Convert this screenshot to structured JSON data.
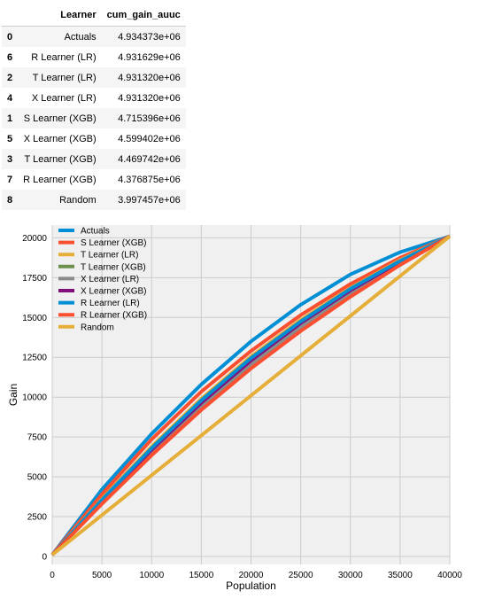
{
  "table": {
    "columns": [
      "",
      "Learner",
      "cum_gain_auuc"
    ],
    "rows": [
      {
        "index": "0",
        "learner": "Actuals",
        "auuc": "4.934373e+06"
      },
      {
        "index": "6",
        "learner": "R Learner (LR)",
        "auuc": "4.931629e+06"
      },
      {
        "index": "2",
        "learner": "T Learner (LR)",
        "auuc": "4.931320e+06"
      },
      {
        "index": "4",
        "learner": "X Learner (LR)",
        "auuc": "4.931320e+06"
      },
      {
        "index": "1",
        "learner": "S Learner (XGB)",
        "auuc": "4.715396e+06"
      },
      {
        "index": "5",
        "learner": "X Learner (XGB)",
        "auuc": "4.599402e+06"
      },
      {
        "index": "3",
        "learner": "T Learner (XGB)",
        "auuc": "4.469742e+06"
      },
      {
        "index": "7",
        "learner": "R Learner (XGB)",
        "auuc": "4.376875e+06"
      },
      {
        "index": "8",
        "learner": "Random",
        "auuc": "3.997457e+06"
      }
    ]
  },
  "chart_data": {
    "type": "line",
    "title": "",
    "xlabel": "Population",
    "ylabel": "Gain",
    "xlim": [
      0,
      40000
    ],
    "ylim": [
      -500,
      20800
    ],
    "xticks": [
      0,
      5000,
      10000,
      15000,
      20000,
      25000,
      30000,
      35000,
      40000
    ],
    "yticks": [
      0,
      2500,
      5000,
      7500,
      10000,
      12500,
      15000,
      17500,
      20000
    ],
    "grid": true,
    "legend_position": "upper-left",
    "background": "#f0f0f0",
    "x": [
      0,
      5000,
      10000,
      15000,
      20000,
      25000,
      30000,
      35000,
      40000
    ],
    "series": [
      {
        "name": "Actuals",
        "color": "#008fd5",
        "values": [
          100,
          4200,
          7700,
          10800,
          13500,
          15800,
          17700,
          19100,
          20100
        ]
      },
      {
        "name": "S Learner (XGB)",
        "color": "#fc4f30",
        "values": [
          100,
          3900,
          7350,
          10350,
          12900,
          15150,
          17100,
          18750,
          20100
        ]
      },
      {
        "name": "T Learner (LR)",
        "color": "#e5ae38",
        "values": [
          100,
          3600,
          6900,
          9900,
          12550,
          14850,
          16850,
          18600,
          20100
        ]
      },
      {
        "name": "T Learner (XGB)",
        "color": "#6d904f",
        "values": [
          100,
          3400,
          6500,
          9350,
          11950,
          14300,
          16450,
          18350,
          20100
        ]
      },
      {
        "name": "X Learner (LR)",
        "color": "#8b8b8b",
        "values": [
          100,
          3450,
          6600,
          9450,
          12050,
          14400,
          16550,
          18400,
          20100
        ]
      },
      {
        "name": "X Learner (XGB)",
        "color": "#810f7c",
        "values": [
          100,
          3500,
          6700,
          9650,
          12300,
          14650,
          16700,
          18500,
          20100
        ]
      },
      {
        "name": "R Learner (LR)",
        "color": "#008fd5",
        "values": [
          100,
          3550,
          6800,
          9800,
          12450,
          14750,
          16800,
          18550,
          20100
        ]
      },
      {
        "name": "R Learner (XGB)",
        "color": "#fc4f30",
        "values": [
          100,
          3300,
          6350,
          9200,
          11800,
          14150,
          16300,
          18300,
          20100
        ]
      },
      {
        "name": "Random",
        "color": "#e5ae38",
        "values": [
          100,
          2600,
          5100,
          7600,
          10100,
          12600,
          15100,
          17600,
          20100
        ]
      }
    ]
  }
}
